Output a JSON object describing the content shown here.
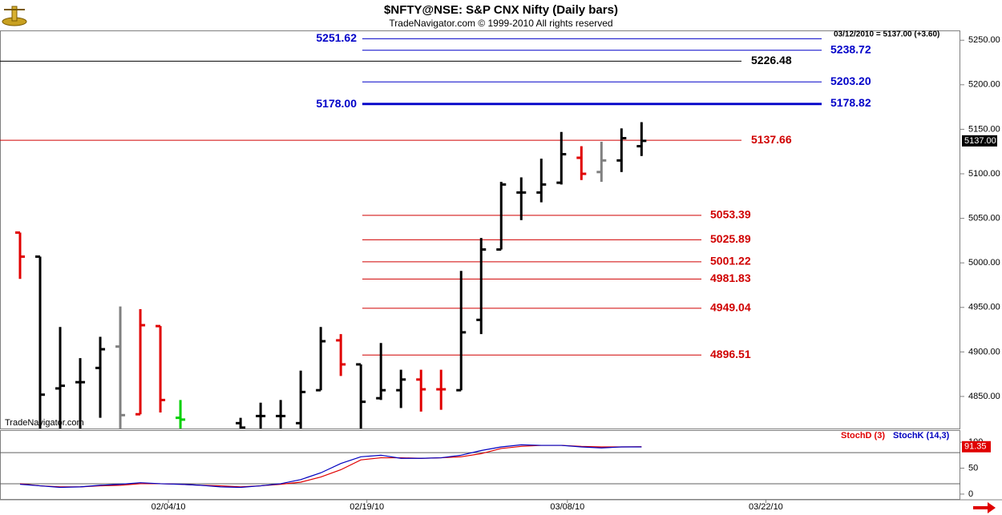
{
  "chart_data": [
    {
      "type": "ohlc",
      "title": "$NFTY@NSE:  S&P CNX Nifty  (Daily bars)",
      "subtitle": "TradeNavigator.com © 1999-2010 All rights reserved",
      "watermark": "TradeNavigator.com",
      "info": "03/12/2010 = 5137.00 (+3.60)",
      "x": [
        0,
        1,
        2,
        3,
        4,
        5,
        6,
        7,
        8,
        11,
        12,
        13,
        14,
        15,
        16,
        17,
        18,
        19,
        20,
        21,
        22,
        23,
        24,
        25,
        26,
        27,
        28,
        29,
        30,
        31
      ],
      "open": [
        5034,
        5007,
        4859,
        4866,
        4882,
        4906,
        4830,
        4929,
        4826,
        4820,
        4828,
        4828,
        4820,
        4857,
        4913,
        4886,
        4848,
        4857,
        4869,
        4858,
        4857,
        4936,
        5015,
        5079,
        5079,
        5090,
        5118,
        5102,
        5115,
        5131
      ],
      "high": [
        5034,
        5007,
        4928,
        4893,
        4917,
        4951,
        4948,
        4929,
        4846,
        4826,
        4843,
        4846,
        4879,
        4928,
        4920,
        4886,
        4910,
        4880,
        4880,
        4880,
        4991,
        5028,
        5091,
        5096,
        5117,
        5147,
        5131,
        5136,
        5151,
        5158
      ],
      "low": [
        4982,
        4800,
        4810,
        4810,
        4826,
        4810,
        4830,
        4832,
        4810,
        4810,
        4810,
        4810,
        4810,
        4857,
        4873,
        4810,
        4846,
        4837,
        4833,
        4835,
        4857,
        4920,
        5015,
        5048,
        5068,
        5088,
        5093,
        5091,
        5102,
        5120
      ],
      "close": [
        5007,
        4852,
        4862,
        4866,
        4903,
        4829,
        4930,
        4846,
        4824,
        4815,
        4828,
        4828,
        4855,
        4912,
        4886,
        4844,
        4857,
        4869,
        4858,
        4858,
        4922,
        5015,
        5088,
        5079,
        5088,
        5122,
        5100,
        5115,
        5140,
        5137
      ],
      "colors": [
        "#e00000",
        "#000000",
        "#000000",
        "#000000",
        "#000000",
        "#808080",
        "#e00000",
        "#e00000",
        "#00d000",
        "#000000",
        "#000000",
        "#000000",
        "#000000",
        "#000000",
        "#e00000",
        "#000000",
        "#000000",
        "#000000",
        "#e00000",
        "#e00000",
        "#000000",
        "#000000",
        "#000000",
        "#000000",
        "#000000",
        "#000000",
        "#e00000",
        "#808080",
        "#000000",
        "#000000"
      ],
      "xlim": [
        -1,
        46.9
      ],
      "xticks": [
        {
          "value": 7.4,
          "label": "02/04/10"
        },
        {
          "value": 17.3,
          "label": "02/19/10"
        },
        {
          "value": 27.3,
          "label": "03/08/10"
        },
        {
          "value": 37.2,
          "label": "03/22/10"
        }
      ],
      "ylim": [
        4814,
        5261
      ],
      "yticks": [
        {
          "value": 5250,
          "label": "5250.00"
        },
        {
          "value": 5200,
          "label": "5200.00"
        },
        {
          "value": 5150,
          "label": "5150.00"
        },
        {
          "value": 5100,
          "label": "5100.00"
        },
        {
          "value": 5050,
          "label": "5050.00"
        },
        {
          "value": 5000,
          "label": "5000.00"
        },
        {
          "value": 4950,
          "label": "4950.00"
        },
        {
          "value": 4900,
          "label": "4900.00"
        },
        {
          "value": 4850,
          "label": "4850.00"
        }
      ],
      "last_price": {
        "value": 5137,
        "label": "5137.00"
      },
      "levels": {
        "values": [
          5251.62,
          5238.72,
          5226.48,
          5203.2,
          5178,
          5178.82,
          5137.66,
          5053.39,
          5025.89,
          5001.22,
          4981.83,
          4949.04,
          4896.51
        ],
        "value_labels": [
          "5251.62",
          "5238.72",
          "5226.48",
          "5203.20",
          "5178.00",
          "5178.82",
          "5137.66",
          "5053.39",
          "5025.89",
          "5001.22",
          "4981.83",
          "4949.04",
          "4896.51"
        ],
        "colors": [
          "#0000c8",
          "#0000c8",
          "#000000",
          "#0000c8",
          "#0000c8",
          "#0000c8",
          "#d00000",
          "#d00000",
          "#d00000",
          "#d00000",
          "#d00000",
          "#d00000",
          "#d00000"
        ]
      }
    },
    {
      "type": "line",
      "x": [
        0,
        1,
        2,
        3,
        4,
        5,
        6,
        7,
        8,
        9,
        10,
        11,
        12,
        13,
        14,
        15,
        16,
        17,
        18,
        19,
        20,
        21,
        22,
        23,
        24,
        25,
        26,
        27,
        28,
        29,
        30,
        31
      ],
      "series": [
        {
          "name": "StochD (3)",
          "color": "#e00000",
          "values": [
            20,
            16,
            14,
            14,
            16,
            17,
            20,
            20,
            19,
            17,
            16,
            14,
            16,
            19,
            23,
            33,
            47,
            66,
            70,
            70,
            69,
            70,
            72,
            78,
            88,
            92,
            94,
            94,
            92,
            91,
            91,
            91.35
          ]
        },
        {
          "name": "StochK (14,3)",
          "color": "#0000c0",
          "values": [
            19,
            16,
            13,
            14,
            17,
            19,
            22,
            20,
            19,
            17,
            14,
            13,
            16,
            20,
            28,
            41,
            59,
            72,
            75,
            69,
            69,
            70,
            75,
            84,
            91,
            95,
            94,
            94,
            91,
            89,
            91,
            91
          ]
        }
      ],
      "ylim": [
        -9.4,
        123.4
      ],
      "yticks": [
        0,
        50,
        100
      ],
      "levels": [
        20,
        80
      ]
    }
  ]
}
